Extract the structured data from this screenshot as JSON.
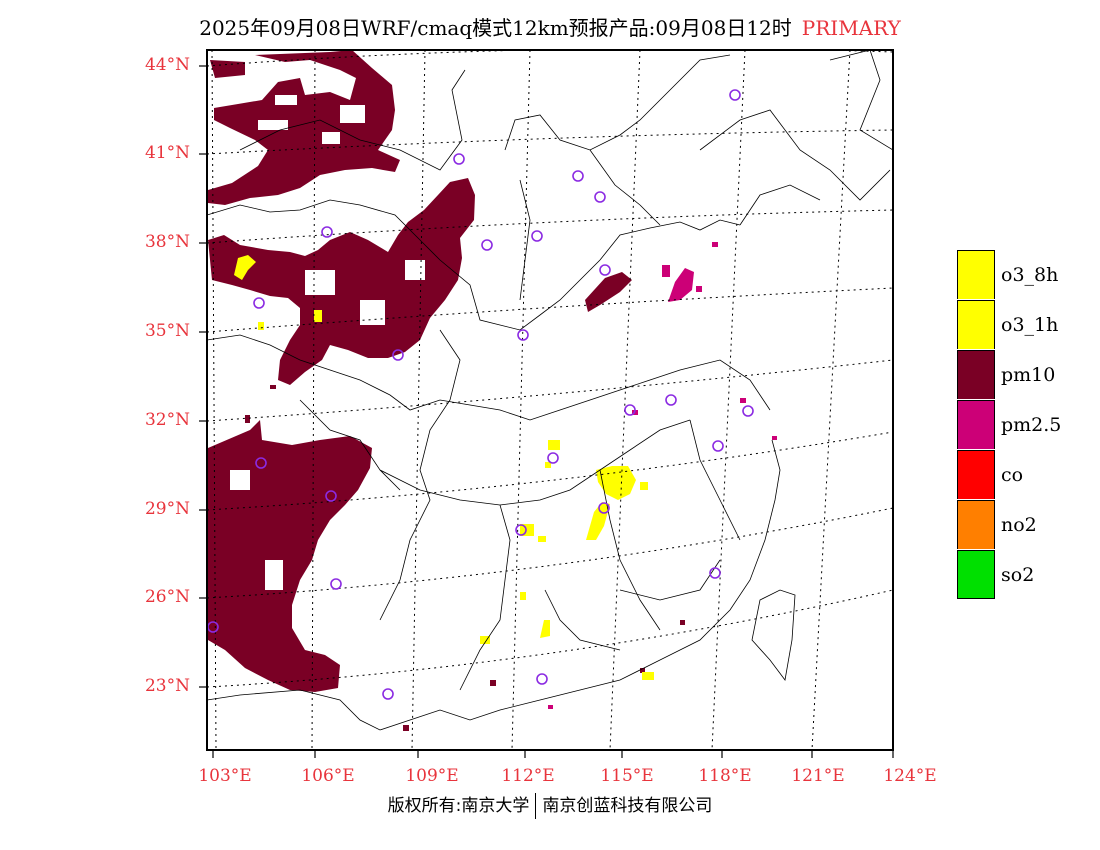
{
  "title": {
    "text": "2025年09月08日WRF/cmaq模式12km预报产品:09月08日12时",
    "tag": "PRIMARY",
    "tag_color": "#e8343c"
  },
  "axes": {
    "latitudes": [
      "44°N",
      "41°N",
      "38°N",
      "35°N",
      "32°N",
      "29°N",
      "26°N",
      "23°N"
    ],
    "longitudes": [
      "103°E",
      "106°E",
      "109°E",
      "112°E",
      "115°E",
      "118°E",
      "121°E",
      "124°E"
    ],
    "label_color": "#e8343c"
  },
  "legend": [
    {
      "label": "o3_8h",
      "color": "#ffff00"
    },
    {
      "label": "o3_1h",
      "color": "#ffff00"
    },
    {
      "label": "pm10",
      "color": "#7a0025"
    },
    {
      "label": "pm2.5",
      "color": "#cc0077"
    },
    {
      "label": "co",
      "color": "#ff0000"
    },
    {
      "label": "no2",
      "color": "#ff7f00"
    },
    {
      "label": "so2",
      "color": "#00e000"
    }
  ],
  "station_marker_color": "#8b2be2",
  "copyright": {
    "left": "版权所有:南京大学",
    "right": "南京创蓝科技有限公司"
  }
}
